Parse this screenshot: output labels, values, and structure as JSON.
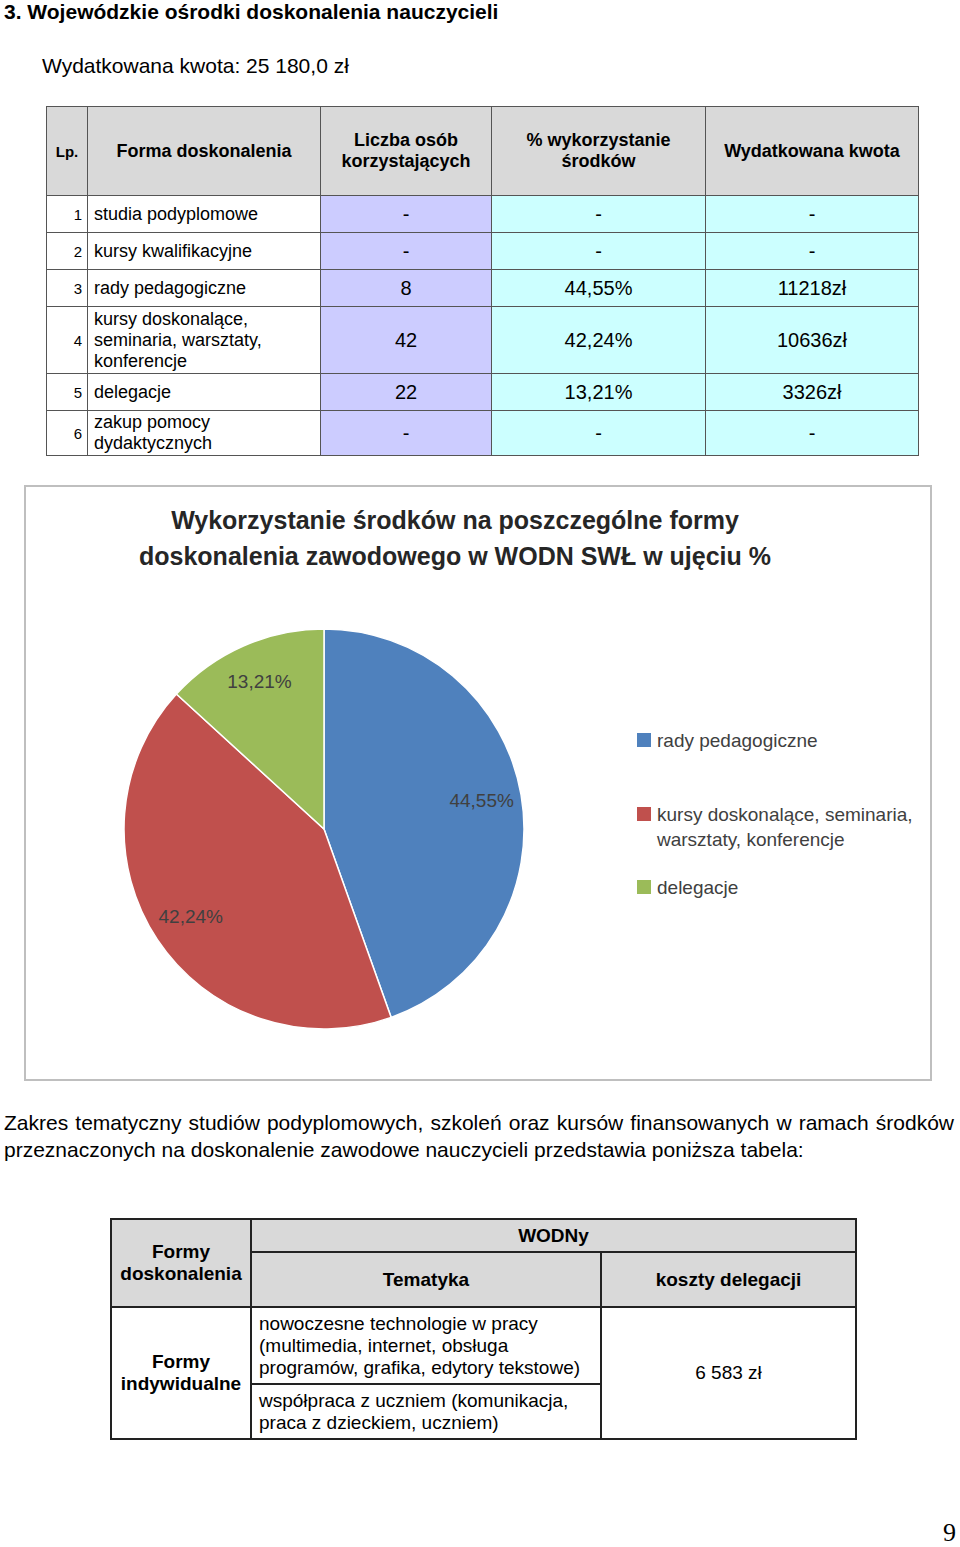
{
  "heading": "3. Wojewódzkie ośrodki doskonalenia nauczycieli",
  "spent": "Wydatkowana kwota: 25 180,0 zł",
  "table1": {
    "header": [
      "Lp.",
      "Forma doskonalenia",
      "Liczba osób korzystających",
      "% wykorzystanie środków",
      "Wydatkowana kwota"
    ],
    "rows": [
      [
        "1",
        "studia podyplomowe",
        "-",
        "-",
        "-"
      ],
      [
        "2",
        "kursy kwalifikacyjne",
        "-",
        "-",
        "-"
      ],
      [
        "3",
        "rady pedagogiczne",
        "8",
        "44,55%",
        "11218zł"
      ],
      [
        "4",
        "kursy doskonalące, seminaria, warsztaty, konferencje",
        "42",
        "42,24%",
        "10636zł"
      ],
      [
        "5",
        "delegacje",
        "22",
        "13,21%",
        "3326zł"
      ],
      [
        "6",
        "zakup pomocy dydaktycznych",
        "-",
        "-",
        "-"
      ]
    ]
  },
  "chart_data": {
    "type": "pie",
    "title": "Wykorzystanie środków na poszczególne formy doskonalenia zawodowego w WODN SWŁ w ujęciu %",
    "categories": [
      "rady pedagogiczne",
      "kursy doskonalące, seminaria, warsztaty, konferencje",
      "delegacje"
    ],
    "values": [
      44.55,
      42.24,
      13.21
    ],
    "value_labels": [
      "44,55%",
      "42,24%",
      "13,21%"
    ],
    "colors": [
      "#4f81bd",
      "#c0504d",
      "#9bbb59"
    ],
    "data_labels": true,
    "legend": "right"
  },
  "paragraph": "Zakres tematyczny studiów podyplomowych, szkoleń oraz kursów finansowanych w ramach środków przeznaczonych na doskonalenie zawodowe nauczycieli przedstawia poniższa tabela:",
  "table2": {
    "header": {
      "forms": "Formy doskonalenia",
      "group": "WODNy",
      "columns": [
        "Tematyka",
        "koszty delegacji"
      ]
    },
    "body": {
      "form": "Formy indywidualne",
      "topics": [
        "nowoczesne technologie w pracy (multimedia, internet, obsługa programów, grafika, edytory tekstowe)",
        "współpraca z uczniem (komunikacja, praca z dzieckiem, uczniem)"
      ],
      "cost": "6 583 zł"
    }
  },
  "page_number": "9"
}
